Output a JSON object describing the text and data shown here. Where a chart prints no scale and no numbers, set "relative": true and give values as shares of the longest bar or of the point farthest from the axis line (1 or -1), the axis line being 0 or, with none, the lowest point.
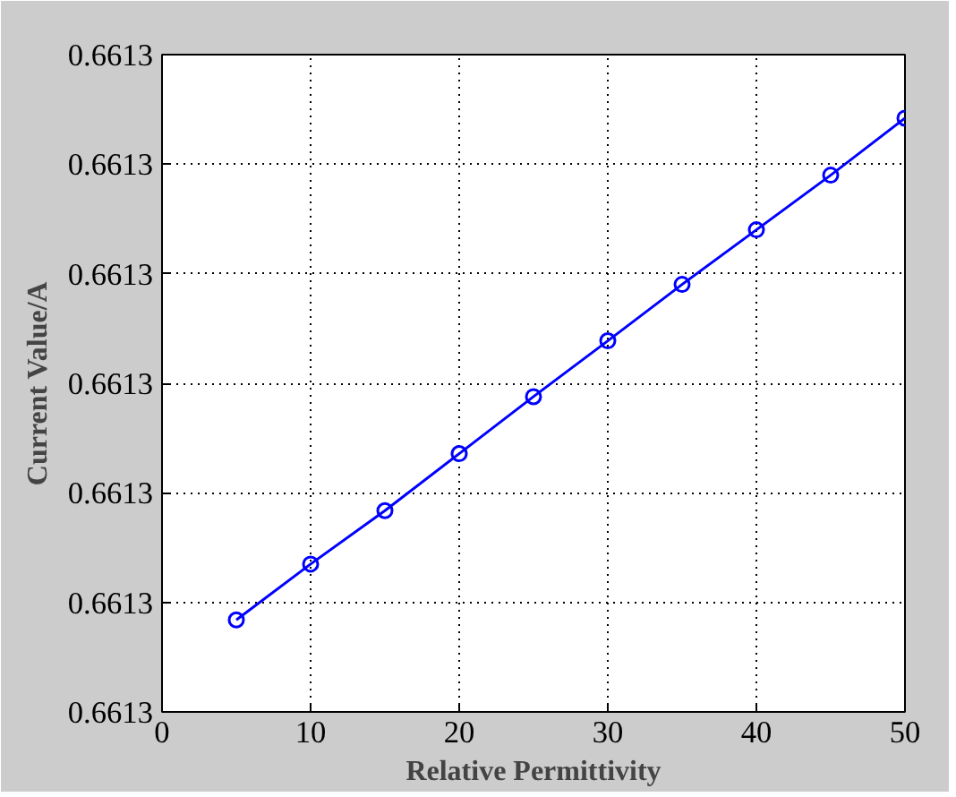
{
  "chart_data": {
    "type": "line",
    "xlabel": "Relative Permittivity",
    "ylabel": "Current Value/A",
    "x": [
      5,
      10,
      15,
      20,
      25,
      30,
      35,
      40,
      45,
      50
    ],
    "series": [
      {
        "color": "#0000ff",
        "values": [
          0.155,
          0.249,
          0.339,
          0.435,
          0.531,
          0.625,
          0.72,
          0.812,
          0.904,
          1
        ]
      }
    ],
    "relative": true,
    "xlim": [
      0,
      50
    ],
    "xticks": [
      0,
      10,
      20,
      30,
      40,
      50
    ],
    "annotations": [
      "0.6613",
      "0.6613",
      "0.6613",
      "0.6613",
      "0.6613",
      "0.6613",
      "0.6613"
    ],
    "grid": true,
    "marker": "circle",
    "line_style": "solid"
  }
}
